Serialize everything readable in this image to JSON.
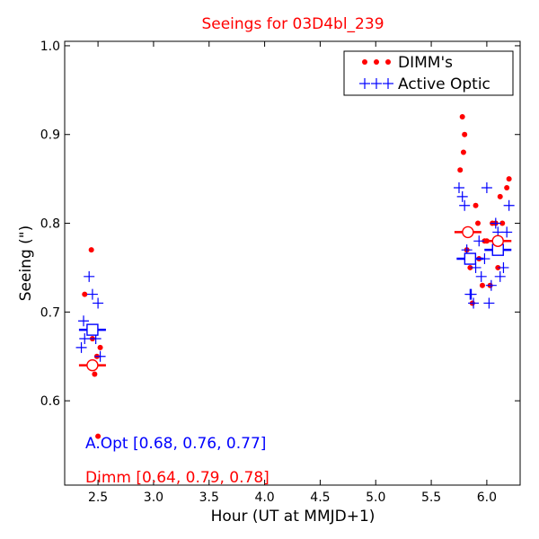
{
  "chart_data": {
    "type": "scatter",
    "title": "Seeings for 03D4bl_239",
    "xlabel": "Hour (UT at MMJD+1)",
    "ylabel": "Seeing (\")",
    "xlim": [
      2.2,
      6.3
    ],
    "ylim": [
      0.505,
      1.005
    ],
    "x_ticks": [
      2.5,
      3.0,
      3.5,
      4.0,
      4.5,
      5.0,
      5.5,
      6.0
    ],
    "x_tick_labels": [
      "2.5",
      "3.0",
      "3.5",
      "4.0",
      "4.5",
      "5.0",
      "5.5",
      "6.0"
    ],
    "y_ticks": [
      0.6,
      0.7,
      0.8,
      0.9,
      1.0
    ],
    "y_tick_labels": [
      "0.6",
      "0.7",
      "0.8",
      "0.9",
      "1.0"
    ],
    "grid": false,
    "legend_position": "top-right",
    "colors": {
      "dimm": "#ff0000",
      "active_optic": "#0000ff",
      "axis": "#000000"
    },
    "series": [
      {
        "name": "DIMM's",
        "marker": "dot",
        "color": "#ff0000",
        "x": [
          2.38,
          2.44,
          2.45,
          2.47,
          2.5,
          2.52,
          2.49,
          5.76,
          5.78,
          5.79,
          5.8,
          5.82,
          5.85,
          5.87,
          5.9,
          5.92,
          5.93,
          5.96,
          5.98,
          6.0,
          6.03,
          6.05,
          6.08,
          6.1,
          6.12,
          6.14,
          6.18,
          6.2
        ],
        "y": [
          0.72,
          0.77,
          0.67,
          0.63,
          0.56,
          0.66,
          0.65,
          0.86,
          0.92,
          0.88,
          0.9,
          0.77,
          0.75,
          0.71,
          0.82,
          0.8,
          0.76,
          0.73,
          0.78,
          0.78,
          0.73,
          0.8,
          0.8,
          0.75,
          0.83,
          0.8,
          0.84,
          0.85
        ]
      },
      {
        "name": "Active Optic",
        "marker": "plus",
        "color": "#0000ff",
        "x": [
          2.35,
          2.37,
          2.38,
          2.42,
          2.45,
          2.5,
          2.52,
          2.48,
          5.75,
          5.78,
          5.8,
          5.82,
          5.86,
          5.88,
          5.9,
          5.93,
          5.95,
          5.98,
          6.0,
          6.02,
          6.04,
          6.08,
          6.12,
          6.15,
          6.18,
          6.2,
          5.85,
          6.1
        ],
        "y": [
          0.66,
          0.69,
          0.67,
          0.74,
          0.72,
          0.71,
          0.65,
          0.67,
          0.84,
          0.83,
          0.82,
          0.77,
          0.72,
          0.71,
          0.75,
          0.78,
          0.74,
          0.76,
          0.84,
          0.71,
          0.73,
          0.8,
          0.74,
          0.75,
          0.79,
          0.82,
          0.72,
          0.79
        ]
      }
    ],
    "median_markers": [
      {
        "series": "Active Optic",
        "marker": "square",
        "color": "#0000ff",
        "x": [
          2.45,
          5.85,
          6.1
        ],
        "y": [
          0.68,
          0.76,
          0.77
        ]
      },
      {
        "series": "DIMM's",
        "marker": "circle",
        "color": "#ff0000",
        "x": [
          2.45,
          5.83,
          6.1
        ],
        "y": [
          0.64,
          0.79,
          0.78
        ]
      }
    ],
    "annotations": [
      {
        "text": "A.Opt [0.68, 0.76, 0.77]",
        "color": "#0000ff"
      },
      {
        "text": "Dimm [0.64, 0.79, 0.78]",
        "color": "#ff0000"
      }
    ]
  }
}
